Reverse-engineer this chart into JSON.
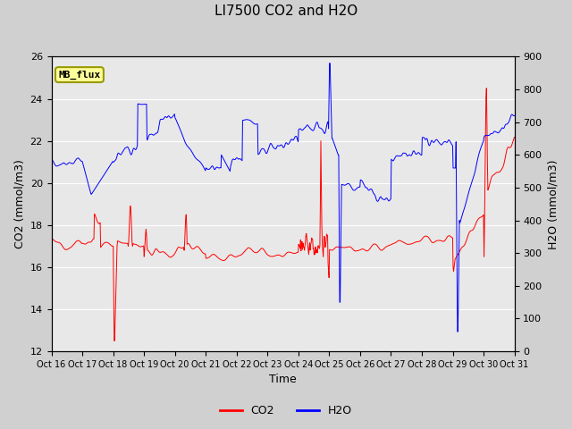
{
  "title": "LI7500 CO2 and H2O",
  "xlabel": "Time",
  "ylabel_left": "CO2 (mmol/m3)",
  "ylabel_right": "H2O (mmol/m3)",
  "ylim_left": [
    12,
    26
  ],
  "ylim_right": [
    0,
    900
  ],
  "yticks_left": [
    12,
    14,
    16,
    18,
    20,
    22,
    24,
    26
  ],
  "yticks_right": [
    0,
    100,
    200,
    300,
    400,
    500,
    600,
    700,
    800,
    900
  ],
  "fig_bg_color": "#d0d0d0",
  "plot_bg_color": "#e8e8e8",
  "annotation_text": "MB_flux",
  "annotation_bg": "#ffff99",
  "annotation_border": "#999900",
  "x_tick_labels": [
    "Oct 16",
    "Oct 17",
    "Oct 18",
    "Oct 19",
    "Oct 20",
    "Oct 21",
    "Oct 22",
    "Oct 23",
    "Oct 24",
    "Oct 25",
    "Oct 26",
    "Oct 27",
    "Oct 28",
    "Oct 29",
    "Oct 30",
    "Oct 31"
  ],
  "n_points": 960
}
